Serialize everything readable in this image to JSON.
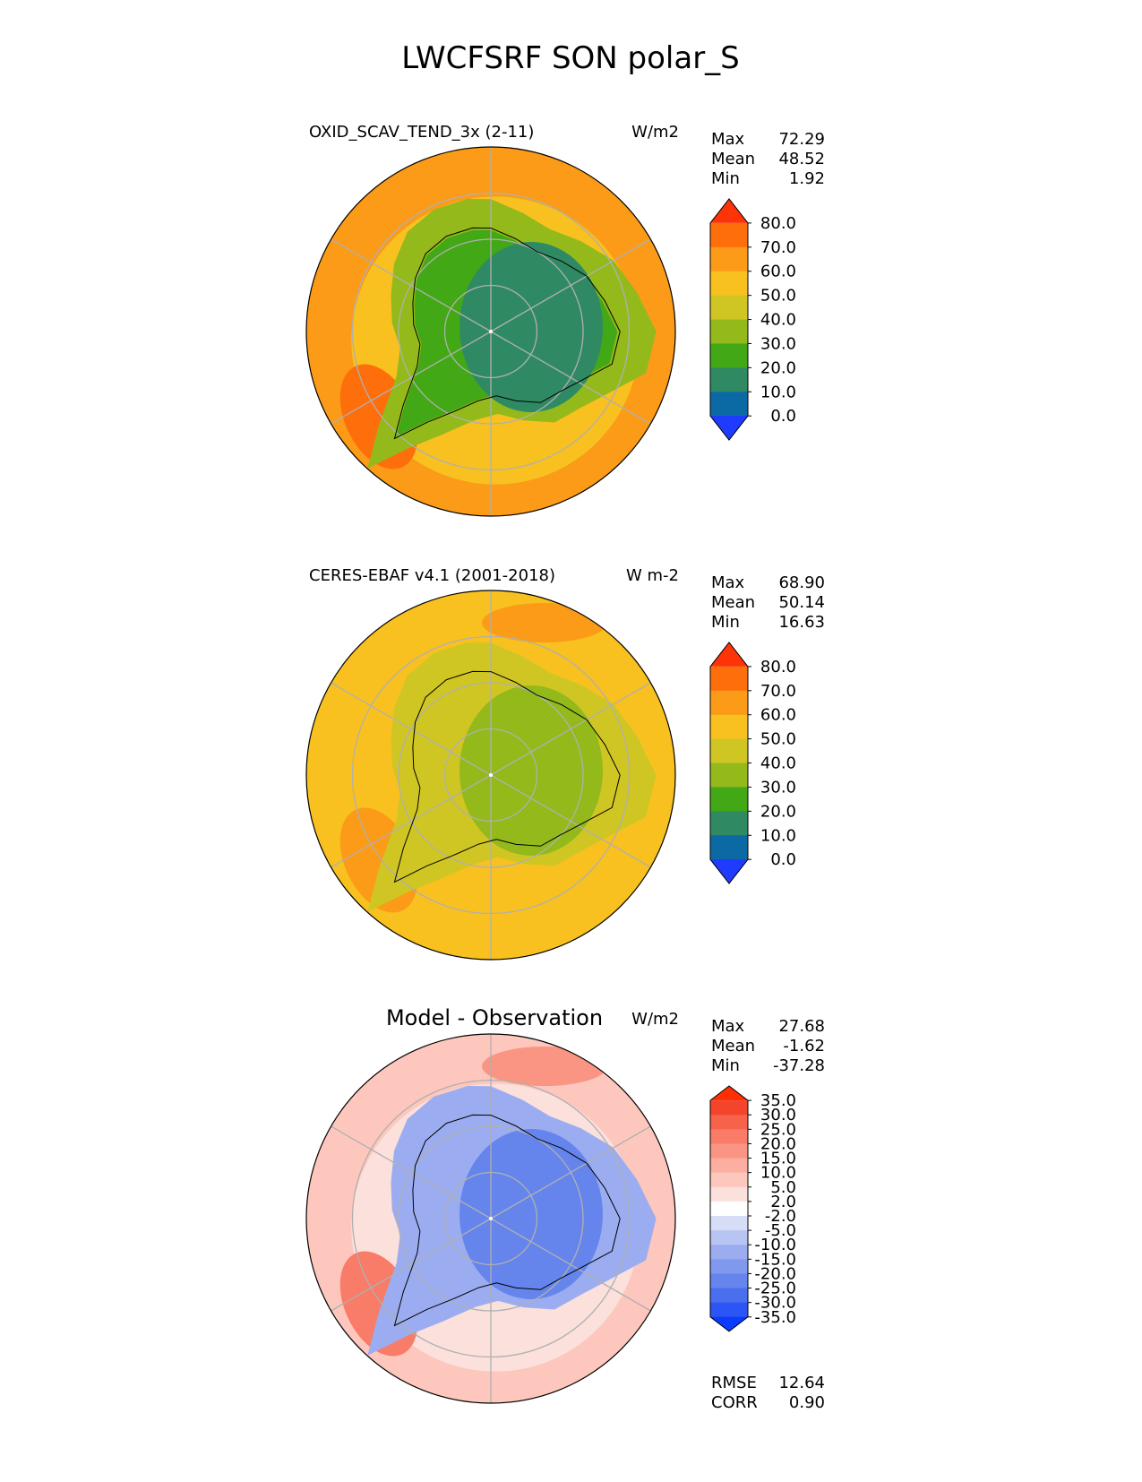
{
  "title": "LWCFSRF SON polar_S",
  "colors": {
    "land_outline": "#000000",
    "grid": "#b0b0b0"
  },
  "chart_data": [
    {
      "type": "heatmap",
      "projection": "south-polar-stereographic",
      "title_left": "OXID_SCAV_TEND_3x (2-11)",
      "units": "W/m2",
      "stats": [
        {
          "label": "Max",
          "value": "72.29"
        },
        {
          "label": "Mean",
          "value": "48.52"
        },
        {
          "label": "Min",
          "value": "1.92"
        }
      ],
      "colorbar": {
        "levels": [
          0,
          10,
          20,
          30,
          40,
          50,
          60,
          70,
          80
        ],
        "tick_labels": [
          "80.0",
          "70.0",
          "60.0",
          "50.0",
          "40.0",
          "30.0",
          "20.0",
          "10.0",
          "0.0"
        ],
        "colors": [
          "#1f3bff",
          "#0b6aa3",
          "#2f8a64",
          "#43a815",
          "#93b91b",
          "#d0c623",
          "#f8c120",
          "#fb9b17",
          "#fe6e0b",
          "#fe3308"
        ]
      },
      "field": {
        "ocean_outer": 62,
        "ocean_mid": 52,
        "coast_band": 38,
        "interior_east": 14,
        "interior_west": 28,
        "hotspots": [
          {
            "value": 72
          },
          {
            "value": 68
          }
        ]
      }
    },
    {
      "type": "heatmap",
      "projection": "south-polar-stereographic",
      "title_left": "CERES-EBAF v4.1 (2001-2018)",
      "units": "W m-2",
      "stats": [
        {
          "label": "Max",
          "value": "68.90"
        },
        {
          "label": "Mean",
          "value": "50.14"
        },
        {
          "label": "Min",
          "value": "16.63"
        }
      ],
      "colorbar": {
        "levels": [
          0,
          10,
          20,
          30,
          40,
          50,
          60,
          70,
          80
        ],
        "tick_labels": [
          "80.0",
          "70.0",
          "60.0",
          "50.0",
          "40.0",
          "30.0",
          "20.0",
          "10.0",
          "0.0"
        ],
        "colors": [
          "#1f3bff",
          "#0b6aa3",
          "#2f8a64",
          "#43a815",
          "#93b91b",
          "#d0c623",
          "#f8c120",
          "#fb9b17",
          "#fe6e0b",
          "#fe3308"
        ]
      },
      "field": {
        "ocean_outer": 55,
        "ocean_mid": 52,
        "coast_band": 47,
        "interior_east": 33,
        "interior_west": 42,
        "hotspots": [
          {
            "value": 63
          },
          {
            "value": 62
          }
        ]
      }
    },
    {
      "type": "heatmap",
      "projection": "south-polar-stereographic",
      "title_center": "Model - Observation",
      "units": "W/m2",
      "stats": [
        {
          "label": "Max",
          "value": "27.68"
        },
        {
          "label": "Mean",
          "value": "-1.62"
        },
        {
          "label": "Min",
          "value": "-37.28"
        }
      ],
      "colorbar": {
        "levels": [
          -35,
          -30,
          -25,
          -20,
          -15,
          -10,
          -5,
          -2,
          2,
          5,
          10,
          15,
          20,
          25,
          30,
          35
        ],
        "tick_labels": [
          "35.0",
          "30.0",
          "25.0",
          "20.0",
          "15.0",
          "10.0",
          "5.0",
          "2.0",
          "-2.0",
          "-5.0",
          "-10.0",
          "-15.0",
          "-20.0",
          "-25.0",
          "-30.0",
          "-35.0"
        ],
        "colors": [
          "#0a3bff",
          "#2b55f4",
          "#4a6fee",
          "#6585ec",
          "#8099ee",
          "#9badf0",
          "#b8c5f3",
          "#d7ddf7",
          "#ffffff",
          "#fbe0dc",
          "#fdc7bd",
          "#fcaea0",
          "#fa9583",
          "#f87c67",
          "#f6624a",
          "#f4452c",
          "#ff2f05"
        ]
      },
      "field": {
        "ocean_outer": 8,
        "ocean_mid": 3,
        "coast_band": -12,
        "interior_east": -25,
        "interior_west": -14,
        "hotspots": [
          {
            "value": 22
          },
          {
            "value": 18
          }
        ]
      },
      "metrics": [
        {
          "label": "RMSE",
          "value": "12.64"
        },
        {
          "label": "CORR",
          "value": "0.90"
        }
      ]
    }
  ]
}
